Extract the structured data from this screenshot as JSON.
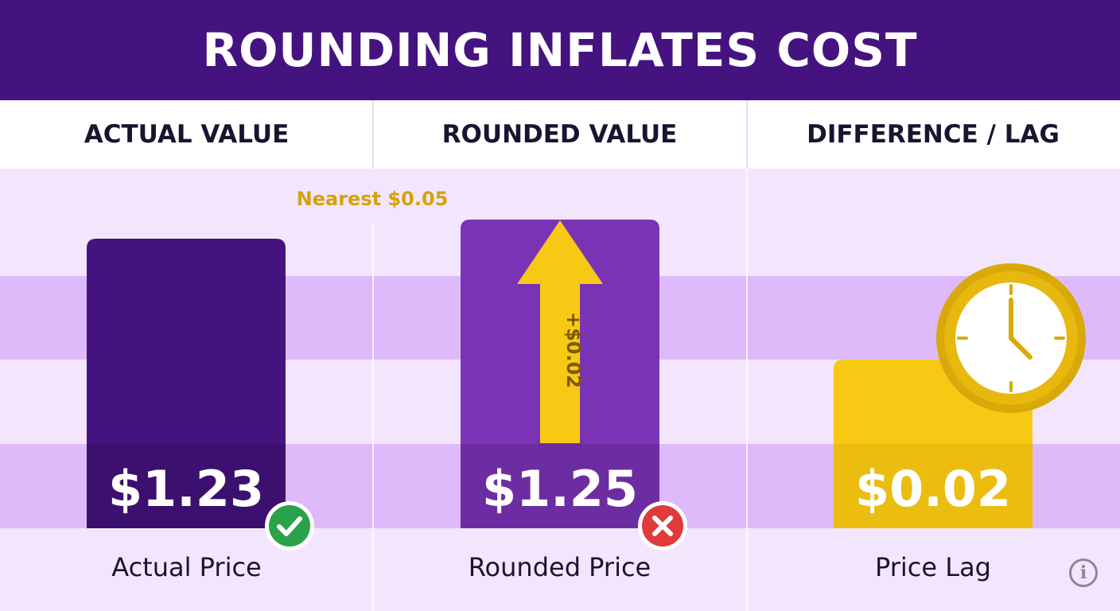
{
  "title": "ROUNDING INFLATES COST",
  "columns": [
    "ACTUAL VALUE",
    "ROUNDED VALUE",
    "DIFFERENCE / LAG"
  ],
  "annotation": "Nearest $0.05",
  "arrow_label": "+$0.02",
  "colors": {
    "header_bg": "#45137f",
    "actual_bar": "#45137f",
    "rounded_bar": "#7a33b5",
    "difference_bar": "#f7c915",
    "arrow": "#f7c915",
    "check": "#2aa24a",
    "cross": "#e03b3b",
    "clock": "#e7b80d"
  },
  "icons": {
    "actual": "check-circle-icon",
    "rounded": "cross-circle-icon",
    "difference": "clock-icon",
    "corner": "info-icon"
  },
  "chart_data": {
    "type": "bar",
    "categories": [
      "Actual Price",
      "Rounded Price",
      "Price Lag"
    ],
    "values": [
      1.23,
      1.25,
      0.02
    ],
    "value_labels": [
      "$1.23",
      "$1.25",
      "$0.02"
    ]
  }
}
